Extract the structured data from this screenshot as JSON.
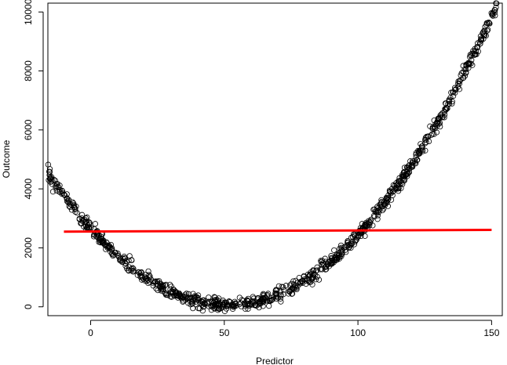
{
  "chart_data": {
    "type": "scatter",
    "title": "",
    "xlabel": "Predictor",
    "ylabel": "Outcome",
    "xlim": [
      -16,
      154
    ],
    "ylim": [
      -300,
      10300
    ],
    "x_ticks": [
      0,
      50,
      100,
      150
    ],
    "y_ticks": [
      0,
      2000,
      4000,
      6000,
      8000,
      10000
    ],
    "grid": false,
    "legend": "none",
    "point_style": "open-circle",
    "point_color": "#000000",
    "scatter_model": {
      "x_range": [
        -16,
        152
      ],
      "relation": "quadratic",
      "vertex_x": 51,
      "vertex_y": 50,
      "curvature": 1.0,
      "noise_sd": 110,
      "n_points": 1000
    },
    "fit_line": {
      "type": "line",
      "color": "#ff0000",
      "x": [
        -10,
        150
      ],
      "y": [
        2550,
        2610
      ]
    }
  }
}
